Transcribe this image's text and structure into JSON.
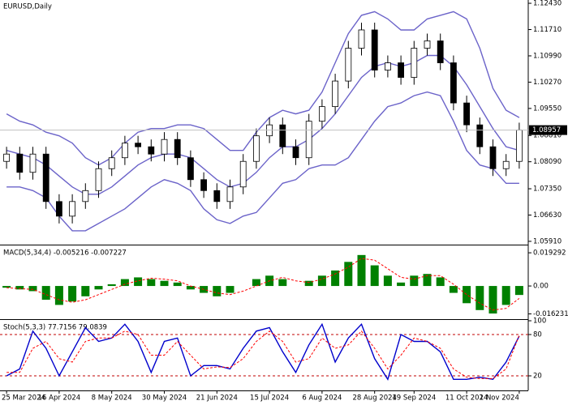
{
  "chart_data": [
    {
      "type": "candlestick",
      "title": "EURUSD,Daily",
      "categories": [
        "25 Mar 2024",
        null,
        null,
        null,
        "16 Apr 2024",
        null,
        null,
        null,
        "8 May 2024",
        null,
        null,
        null,
        "30 May 2024",
        null,
        null,
        null,
        "21 Jun 2024",
        null,
        null,
        null,
        "15 Jul 2024",
        null,
        null,
        null,
        "6 Aug 2024",
        null,
        null,
        null,
        "28 Aug 2024",
        null,
        null,
        "19 Sep 2024",
        null,
        null,
        null,
        "11 Oct 2024",
        null,
        null,
        null,
        "1 Nov 2024"
      ],
      "open": [
        1.081,
        1.083,
        1.078,
        1.083,
        1.07,
        1.066,
        1.07,
        1.073,
        1.079,
        1.082,
        1.086,
        1.085,
        1.083,
        1.087,
        1.082,
        1.076,
        1.073,
        1.07,
        1.074,
        1.081,
        1.088,
        1.091,
        1.085,
        1.082,
        1.092,
        1.096,
        1.103,
        1.112,
        1.117,
        1.106,
        1.108,
        1.104,
        1.112,
        1.114,
        1.108,
        1.097,
        1.091,
        1.085,
        1.079,
        1.081
      ],
      "high": [
        1.085,
        1.085,
        1.085,
        1.085,
        1.072,
        1.072,
        1.075,
        1.081,
        1.084,
        1.088,
        1.088,
        1.087,
        1.089,
        1.089,
        1.084,
        1.078,
        1.075,
        1.076,
        1.083,
        1.09,
        1.093,
        1.093,
        1.087,
        1.094,
        1.098,
        1.105,
        1.114,
        1.119,
        1.119,
        1.11,
        1.11,
        1.114,
        1.116,
        1.116,
        1.11,
        1.099,
        1.093,
        1.087,
        1.083,
        1.0916
      ],
      "low": [
        1.079,
        1.076,
        1.076,
        1.068,
        1.064,
        1.064,
        1.068,
        1.071,
        1.077,
        1.08,
        1.083,
        1.081,
        1.081,
        1.08,
        1.074,
        1.071,
        1.068,
        1.068,
        1.072,
        1.079,
        1.086,
        1.083,
        1.08,
        1.08,
        1.09,
        1.094,
        1.101,
        1.11,
        1.104,
        1.104,
        1.102,
        1.102,
        1.11,
        1.106,
        1.095,
        1.089,
        1.083,
        1.077,
        1.077,
        1.079
      ],
      "close": [
        1.083,
        1.078,
        1.083,
        1.07,
        1.066,
        1.07,
        1.073,
        1.079,
        1.082,
        1.086,
        1.085,
        1.083,
        1.087,
        1.082,
        1.076,
        1.073,
        1.07,
        1.074,
        1.081,
        1.088,
        1.091,
        1.085,
        1.082,
        1.092,
        1.096,
        1.103,
        1.112,
        1.117,
        1.106,
        1.108,
        1.104,
        1.112,
        1.114,
        1.108,
        1.097,
        1.091,
        1.085,
        1.079,
        1.081,
        1.0896
      ],
      "overlays": [
        {
          "color": "#6b63c9",
          "values": [
            1.094,
            1.092,
            1.091,
            1.089,
            1.088,
            1.086,
            1.082,
            1.08,
            1.082,
            1.086,
            1.089,
            1.09,
            1.09,
            1.091,
            1.091,
            1.09,
            1.087,
            1.084,
            1.084,
            1.089,
            1.093,
            1.095,
            1.094,
            1.095,
            1.1,
            1.108,
            1.116,
            1.121,
            1.122,
            1.12,
            1.117,
            1.117,
            1.12,
            1.121,
            1.122,
            1.12,
            1.112,
            1.101,
            1.095,
            1.093
          ]
        },
        {
          "color": "#6b63c9",
          "values": [
            1.084,
            1.083,
            1.082,
            1.08,
            1.077,
            1.074,
            1.072,
            1.072,
            1.074,
            1.077,
            1.08,
            1.082,
            1.083,
            1.083,
            1.082,
            1.079,
            1.076,
            1.074,
            1.075,
            1.078,
            1.082,
            1.085,
            1.085,
            1.087,
            1.09,
            1.094,
            1.099,
            1.104,
            1.107,
            1.108,
            1.107,
            1.108,
            1.11,
            1.11,
            1.107,
            1.102,
            1.096,
            1.09,
            1.085,
            1.084
          ]
        },
        {
          "color": "#6b63c9",
          "values": [
            1.074,
            1.074,
            1.073,
            1.071,
            1.066,
            1.062,
            1.062,
            1.064,
            1.066,
            1.068,
            1.071,
            1.074,
            1.076,
            1.075,
            1.073,
            1.068,
            1.065,
            1.064,
            1.066,
            1.067,
            1.071,
            1.075,
            1.076,
            1.079,
            1.08,
            1.08,
            1.082,
            1.087,
            1.092,
            1.096,
            1.097,
            1.099,
            1.1,
            1.099,
            1.092,
            1.084,
            1.08,
            1.079,
            1.075,
            1.075
          ]
        }
      ],
      "last_price": 1.08957,
      "ylim": [
        1.0582,
        1.1252
      ],
      "yticks": [
        {
          "value": 1.1243,
          "label": "1.12430"
        },
        {
          "value": 1.1171,
          "label": "1.11710"
        },
        {
          "value": 1.1099,
          "label": "1.10990"
        },
        {
          "value": 1.1027,
          "label": "1.10270"
        },
        {
          "value": 1.0955,
          "label": "1.09550"
        },
        {
          "value": 1.0881,
          "label": "1.08810"
        },
        {
          "value": 1.0809,
          "label": "1.08090"
        },
        {
          "value": 1.0735,
          "label": "1.07350"
        },
        {
          "value": 1.0663,
          "label": "1.06630"
        },
        {
          "value": 1.0591,
          "label": "1.05910"
        }
      ]
    },
    {
      "type": "macd",
      "title": "MACD(5,34,4) -0.005216 -0.007227",
      "histogram": {
        "color": "#008000",
        "values": [
          -0.001,
          -0.002,
          -0.003,
          -0.008,
          -0.011,
          -0.009,
          -0.006,
          -0.002,
          0.001,
          0.004,
          0.005,
          0.004,
          0.003,
          0.002,
          -0.002,
          -0.004,
          -0.006,
          -0.004,
          0.0,
          0.004,
          0.006,
          0.004,
          0.0,
          0.003,
          0.006,
          0.009,
          0.014,
          0.018,
          0.012,
          0.006,
          0.002,
          0.006,
          0.007,
          0.005,
          -0.004,
          -0.01,
          -0.014,
          -0.016,
          -0.011,
          -0.005216
        ]
      },
      "signal": {
        "color": "#ff0000",
        "values": [
          -0.001,
          -0.0015,
          -0.002,
          -0.005,
          -0.008,
          -0.0095,
          -0.008,
          -0.005,
          -0.002,
          0.001,
          0.003,
          0.0045,
          0.004,
          0.003,
          0.0,
          -0.002,
          -0.004,
          -0.005,
          -0.003,
          0.0,
          0.003,
          0.005,
          0.003,
          0.002,
          0.004,
          0.007,
          0.011,
          0.016,
          0.015,
          0.01,
          0.005,
          0.004,
          0.006,
          0.006,
          0.001,
          -0.005,
          -0.01,
          -0.014,
          -0.013,
          -0.007227
        ]
      },
      "ylim": [
        -0.0188,
        0.0231
      ],
      "yticks": [
        0.019292,
        {
          "value": 0,
          "label": "0.00"
        },
        -0.016231
      ]
    },
    {
      "type": "stochastic",
      "title": "Stoch(5,3,3) 77.7156 79.0839",
      "main": {
        "color": "#0000cc",
        "values": [
          20,
          30,
          85,
          60,
          20,
          55,
          90,
          70,
          75,
          95,
          70,
          25,
          70,
          75,
          20,
          35,
          35,
          30,
          60,
          85,
          90,
          55,
          25,
          65,
          95,
          40,
          75,
          95,
          45,
          15,
          80,
          70,
          70,
          55,
          15,
          15,
          18,
          15,
          40,
          77.7156
        ]
      },
      "signal": {
        "color": "#ff0000",
        "values": [
          25,
          25,
          60,
          70,
          45,
          40,
          70,
          75,
          75,
          85,
          80,
          50,
          50,
          70,
          50,
          30,
          33,
          32,
          45,
          70,
          85,
          70,
          40,
          45,
          75,
          60,
          65,
          85,
          60,
          30,
          50,
          75,
          70,
          60,
          30,
          18,
          16,
          16,
          30,
          79.0839
        ]
      },
      "levels": [
        80,
        20
      ],
      "ylim": [
        0,
        100
      ],
      "yticks": [
        100,
        80,
        20
      ]
    }
  ]
}
